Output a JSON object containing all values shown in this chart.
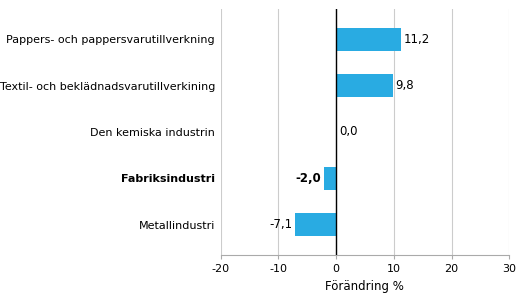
{
  "categories": [
    "Metallindustri",
    "Fabriksindustri",
    "Den kemiska industrin",
    "Textil- och beklädnadsvarutillverkining",
    "Pappers- och pappersvarutillverkning"
  ],
  "values": [
    -7.1,
    -2.0,
    0.0,
    9.8,
    11.2
  ],
  "bold_index": 1,
  "bar_color": "#29ABE2",
  "xlabel": "Förändring %",
  "xlim": [
    -20,
    30
  ],
  "xticks": [
    -20,
    -10,
    0,
    10,
    20,
    30
  ],
  "value_labels": [
    "-7,1",
    "-2,0",
    "0,0",
    "9,8",
    "11,2"
  ],
  "value_label_offsets": [
    -0.5,
    -0.5,
    0.5,
    0.5,
    0.5
  ],
  "background_color": "#ffffff",
  "grid_color": "#cccccc",
  "label_fontsize": 8,
  "value_fontsize": 8.5,
  "xlabel_fontsize": 8.5
}
